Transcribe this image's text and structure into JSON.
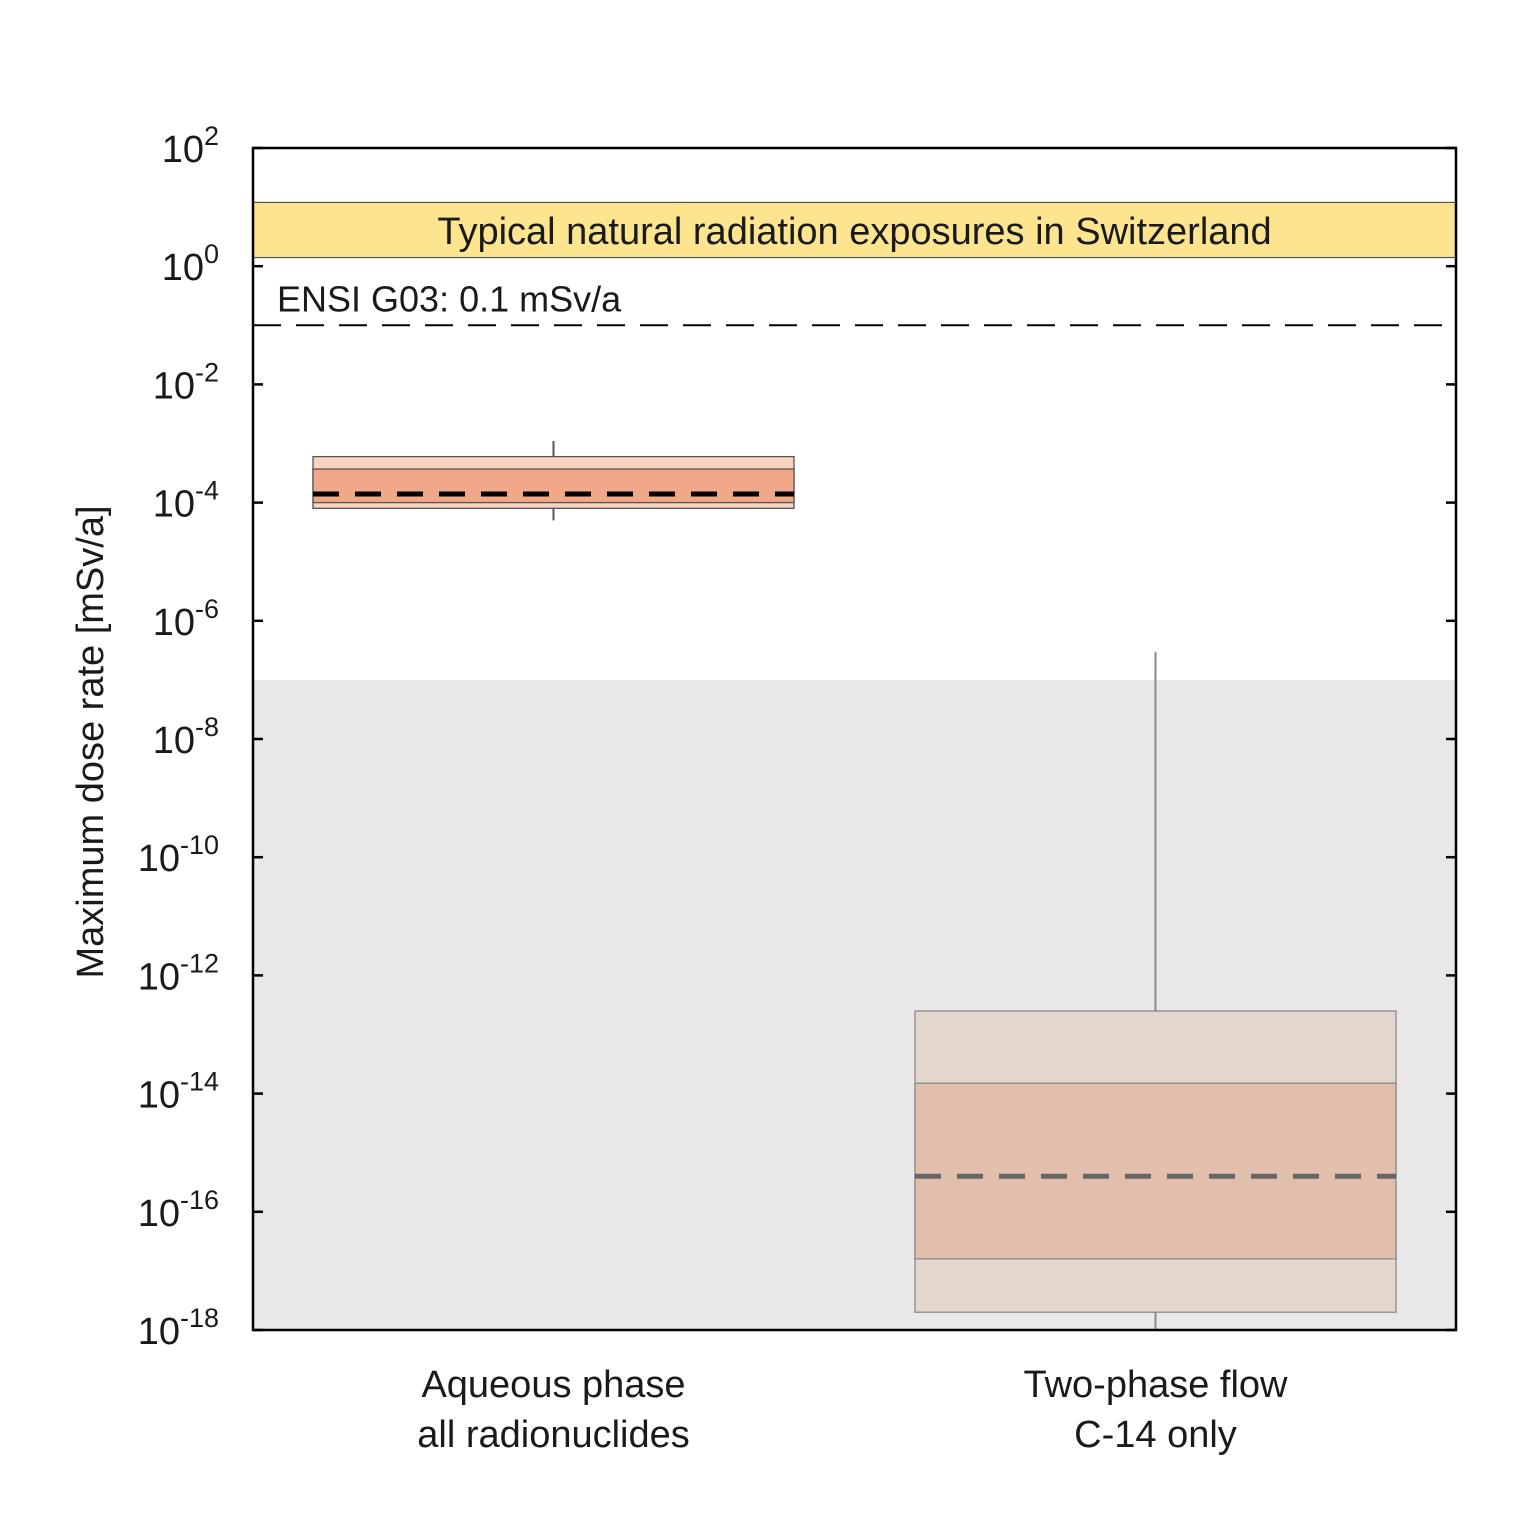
{
  "chart_data": {
    "type": "box",
    "ylabel": "Maximum dose rate [mSv/a]",
    "yscale": "log",
    "ylim": [
      1e-18,
      100
    ],
    "yticks": [
      {
        "base": "10",
        "exp": "2",
        "value": 100
      },
      {
        "base": "10",
        "exp": "0",
        "value": 1
      },
      {
        "base": "10",
        "exp": "-2",
        "value": 0.01
      },
      {
        "base": "10",
        "exp": "-4",
        "value": 0.0001
      },
      {
        "base": "10",
        "exp": "-6",
        "value": 1e-06
      },
      {
        "base": "10",
        "exp": "-8",
        "value": 1e-08
      },
      {
        "base": "10",
        "exp": "-10",
        "value": 1e-10
      },
      {
        "base": "10",
        "exp": "-12",
        "value": 1e-12
      },
      {
        "base": "10",
        "exp": "-14",
        "value": 1e-14
      },
      {
        "base": "10",
        "exp": "-16",
        "value": 1e-16
      },
      {
        "base": "10",
        "exp": "-18",
        "value": 1e-18
      }
    ],
    "categories": [
      [
        "Aqueous phase",
        "all radionuclides"
      ],
      [
        "Two-phase flow",
        "C-14 only"
      ]
    ],
    "boxes": [
      {
        "whisker_low": 5e-05,
        "outer_low": 8e-05,
        "q1": 0.0001,
        "median": 0.00014,
        "q3": 0.00037,
        "outer_high": 0.0006,
        "whisker_high": 0.0011,
        "outer_color": "#f8d3bf",
        "inner_color": "#f0a888",
        "edge_color": "#555555",
        "median_color": "#000000"
      },
      {
        "whisker_low": 1e-18,
        "outer_low": 2e-18,
        "q1": 1.6e-17,
        "median": 4e-16,
        "q3": 1.5e-14,
        "outer_high": 2.5e-13,
        "whisker_high": 3e-07,
        "outer_color": "#e4d7ce",
        "inner_color": "#e2bfac",
        "edge_color": "#8a8a8a",
        "median_color": "#666666"
      }
    ],
    "bands": [
      {
        "label": "Typical natural radiation exposures in Switzerland",
        "y0": 1.4,
        "y1": 12,
        "color": "#fde48f"
      },
      {
        "label": "",
        "y0": 1e-18,
        "y1": 1e-07,
        "color": "#e8e8e8"
      }
    ],
    "reference_line": {
      "label": "ENSI G03: 0.1 mSv/a",
      "value": 0.1
    },
    "grid": false,
    "legend": false
  }
}
